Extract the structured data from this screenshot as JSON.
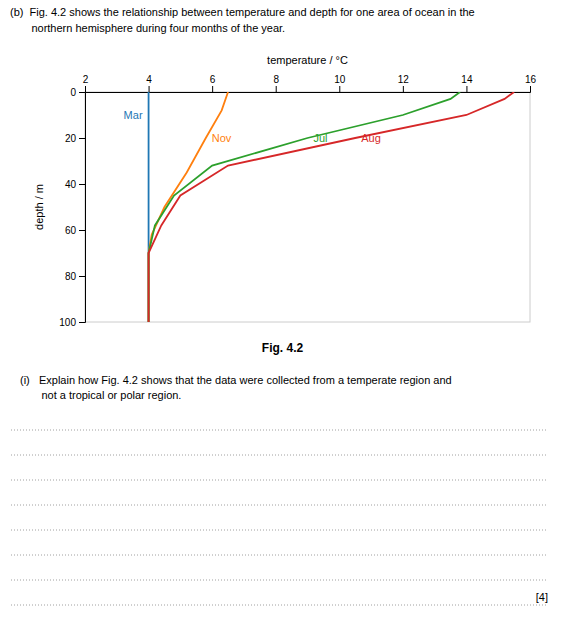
{
  "chart_data": {
    "type": "line",
    "title": "(b)  Fig. 4.2 shows the relationship between temperature and depth for one area of ocean in the",
    "subtitle": "       northern hemisphere during four months of the year.",
    "x_label": "temperature / °C",
    "y_label": "depth / m",
    "caption": "Fig. 4.2",
    "annotations": [
      "(i)   Explain how Fig. 4.2 shows that the data were collected from a temperate region and",
      "       not a tropical or polar region.",
      "[4]"
    ],
    "series": [
      {
        "name": "Mar",
        "x": [
          4.0,
          4.0,
          4.0,
          4.0,
          4.0,
          4.0,
          4.0
        ],
        "values": [
          0,
          10,
          20,
          40,
          60,
          80,
          100
        ]
      },
      {
        "name": "Nov",
        "x": [
          6.5,
          6.3,
          5.8,
          5.2,
          4.5,
          4.1,
          4.0,
          4.0,
          4.0
        ],
        "values": [
          0,
          8,
          20,
          35,
          50,
          62,
          70,
          85,
          100
        ]
      },
      {
        "name": "Jul",
        "x": [
          13.8,
          13.5,
          12.0,
          9.0,
          6.0,
          4.8,
          4.2,
          4.0,
          4.0
        ],
        "values": [
          0,
          3,
          10,
          20,
          32,
          45,
          58,
          70,
          100
        ]
      },
      {
        "name": "Aug",
        "x": [
          15.5,
          15.2,
          14.0,
          10.5,
          6.5,
          5.0,
          4.4,
          4.0,
          4.0
        ],
        "values": [
          0,
          3,
          10,
          20,
          32,
          45,
          58,
          70,
          100
        ]
      }
    ],
    "xlim": [
      2,
      16
    ],
    "xticks": [
      2,
      4,
      6,
      8,
      10,
      12,
      14,
      16
    ],
    "ylim": [
      100,
      0
    ],
    "yticks": [
      0,
      20,
      40,
      60,
      80,
      100
    ]
  }
}
